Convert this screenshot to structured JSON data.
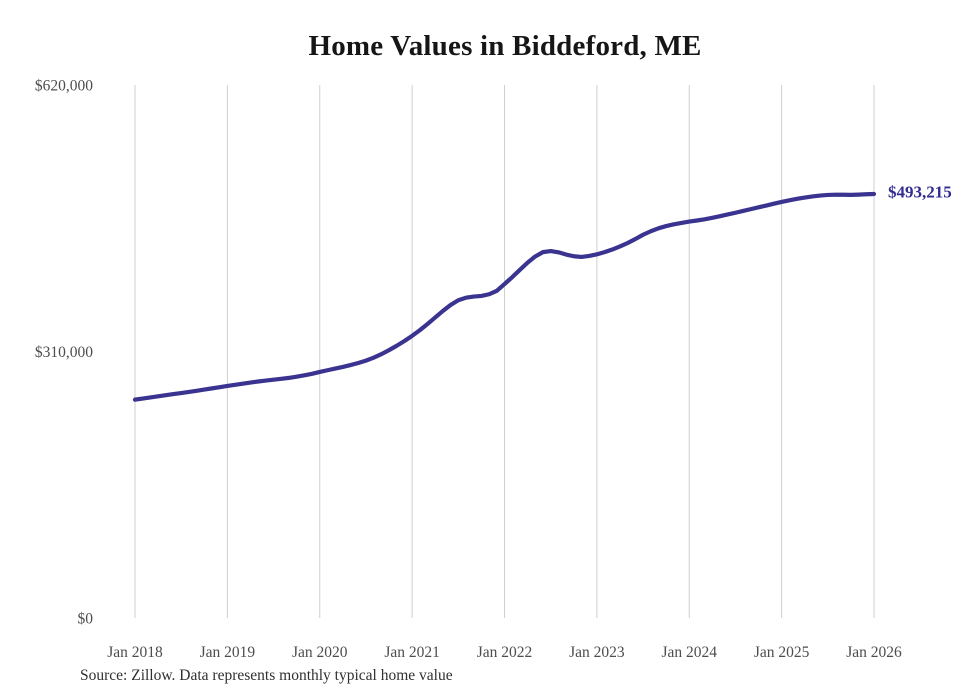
{
  "chart_data": {
    "type": "line",
    "title": "Home Values in Biddeford, ME",
    "end_label": "$493,215",
    "source_note": "Source: Zillow. Data represents monthly typical home value",
    "legend_position": "none",
    "grid": "vertical-only",
    "line_color": "#3a3490",
    "gridline_color": "#cfcfcf",
    "axis_text_color": "#4d4d4d",
    "ylim": [
      0,
      620000
    ],
    "y_ticks": [
      {
        "label": "$620,000",
        "value": 620000
      },
      {
        "label": "$310,000",
        "value": 310000
      },
      {
        "label": "$0",
        "value": 0
      }
    ],
    "x_tick_labels": [
      "Jan 2018",
      "Jan 2019",
      "Jan 2020",
      "Jan 2021",
      "Jan 2022",
      "Jan 2023",
      "Jan 2024",
      "Jan 2025",
      "Jan 2026"
    ],
    "series_name": "Typical home value (monthly)",
    "dates": [
      "2018-01",
      "2018-02",
      "2018-03",
      "2018-04",
      "2018-05",
      "2018-06",
      "2018-07",
      "2018-08",
      "2018-09",
      "2018-10",
      "2018-11",
      "2018-12",
      "2019-01",
      "2019-02",
      "2019-03",
      "2019-04",
      "2019-05",
      "2019-06",
      "2019-07",
      "2019-08",
      "2019-09",
      "2019-10",
      "2019-11",
      "2019-12",
      "2020-01",
      "2020-02",
      "2020-03",
      "2020-04",
      "2020-05",
      "2020-06",
      "2020-07",
      "2020-08",
      "2020-09",
      "2020-10",
      "2020-11",
      "2020-12",
      "2021-01",
      "2021-02",
      "2021-03",
      "2021-04",
      "2021-05",
      "2021-06",
      "2021-07",
      "2021-08",
      "2021-09",
      "2021-10",
      "2021-11",
      "2021-12",
      "2022-01",
      "2022-02",
      "2022-03",
      "2022-04",
      "2022-05",
      "2022-06",
      "2022-07",
      "2022-08",
      "2022-09",
      "2022-10",
      "2022-11",
      "2022-12",
      "2023-01",
      "2023-02",
      "2023-03",
      "2023-04",
      "2023-05",
      "2023-06",
      "2023-07",
      "2023-08",
      "2023-09",
      "2023-10",
      "2023-11",
      "2023-12",
      "2024-01",
      "2024-02",
      "2024-03",
      "2024-04",
      "2024-05",
      "2024-06",
      "2024-07",
      "2024-08",
      "2024-09",
      "2024-10",
      "2024-11",
      "2024-12",
      "2025-01",
      "2025-02",
      "2025-03",
      "2025-04",
      "2025-05",
      "2025-06",
      "2025-07",
      "2025-08",
      "2025-09",
      "2025-10",
      "2025-11",
      "2025-12",
      "2026-01"
    ],
    "values": [
      254000,
      255300,
      256600,
      257900,
      259200,
      260500,
      261700,
      263000,
      264300,
      265700,
      267100,
      268500,
      270000,
      271300,
      272600,
      273900,
      275100,
      276200,
      277200,
      278200,
      279300,
      280700,
      282300,
      284100,
      286200,
      288200,
      290100,
      292000,
      294200,
      296600,
      299400,
      302800,
      306900,
      311600,
      316700,
      322200,
      328200,
      334800,
      342000,
      349600,
      357200,
      364200,
      369600,
      372600,
      373900,
      374600,
      376600,
      380600,
      388500,
      396500,
      405000,
      413400,
      420600,
      425600,
      426800,
      425400,
      422800,
      420800,
      420000,
      421200,
      423000,
      425600,
      428600,
      432200,
      436200,
      440800,
      445800,
      449900,
      453300,
      455900,
      457900,
      459500,
      461200,
      462400,
      463800,
      465500,
      467400,
      469400,
      471400,
      473500,
      475600,
      477700,
      479800,
      481900,
      484000,
      485900,
      487600,
      489100,
      490400,
      491400,
      492100,
      492400,
      492300,
      492200,
      492500,
      492900,
      493215
    ]
  }
}
